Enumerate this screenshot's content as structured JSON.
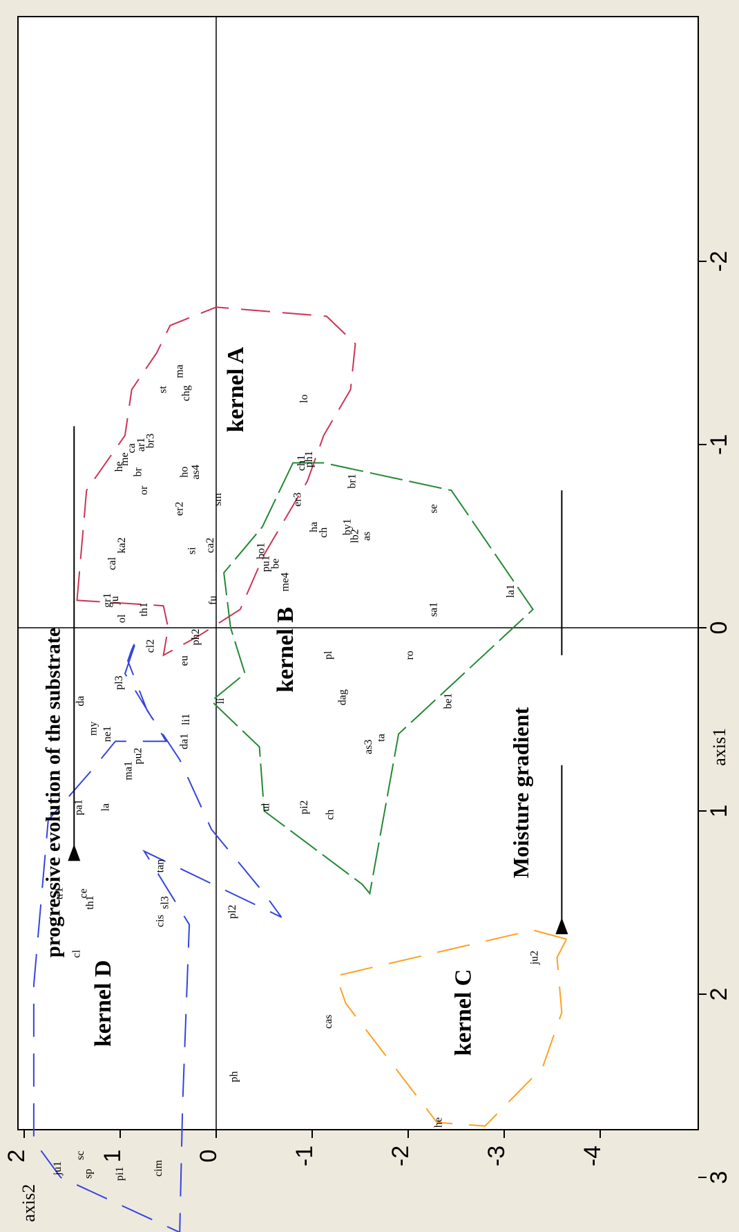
{
  "chart_data": {
    "type": "scatter",
    "title": "",
    "xlabel": "axis1",
    "ylabel": "axis2",
    "xlim": [
      -2.1,
      3.25
    ],
    "ylim": [
      -4.1,
      2.05
    ],
    "x_ticks": [
      -2,
      -1,
      0,
      1,
      2,
      3
    ],
    "x_tick_labels": [
      "-2",
      "-1",
      "0",
      "1",
      "2",
      "3"
    ],
    "y_ticks": [
      2,
      1,
      0,
      -1,
      -2,
      -3,
      -4
    ],
    "y_tick_labels": [
      "2",
      "1",
      "0",
      "-1",
      "-2",
      "-3",
      "-4"
    ],
    "grid": false,
    "orientation": "rotated-90-ccw",
    "annotations": [
      {
        "text": "progressive evolution of the substrate",
        "x": 0.9,
        "y": 1.63
      },
      {
        "text": "Moisture gradient",
        "x": 0.9,
        "y": -3.25
      },
      {
        "text": "kernel A",
        "x": -1.3,
        "y": -0.28
      },
      {
        "text": "kernel B",
        "x": 0.12,
        "y": -0.8
      },
      {
        "text": "kernel C",
        "x": 2.1,
        "y": -2.65
      },
      {
        "text": "kernel D",
        "x": 2.05,
        "y": 1.1
      }
    ],
    "points": [
      {
        "label": "ju1",
        "x": 2.95,
        "y": 1.62
      },
      {
        "label": "sc",
        "x": 2.88,
        "y": 1.38
      },
      {
        "label": "sp",
        "x": 2.98,
        "y": 1.3
      },
      {
        "label": "pi1",
        "x": 2.98,
        "y": 0.97
      },
      {
        "label": "cim",
        "x": 2.95,
        "y": 0.57
      },
      {
        "label": "he",
        "x": 2.7,
        "y": -2.35
      },
      {
        "label": "ph",
        "x": 2.45,
        "y": -0.22
      },
      {
        "label": "cas",
        "x": 2.15,
        "y": -1.2
      },
      {
        "label": "ju2",
        "x": 1.8,
        "y": -3.35
      },
      {
        "label": "cl",
        "x": 1.78,
        "y": 1.42
      },
      {
        "label": "cis",
        "x": 1.6,
        "y": 0.55
      },
      {
        "label": "pl2",
        "x": 1.55,
        "y": -0.2
      },
      {
        "label": "th1",
        "x": 1.5,
        "y": 1.28
      },
      {
        "label": "ce",
        "x": 1.45,
        "y": 1.35
      },
      {
        "label": "sl3",
        "x": 1.5,
        "y": 0.5
      },
      {
        "label": "tr1",
        "x": 1.45,
        "y": 1.6
      },
      {
        "label": "tan",
        "x": 1.3,
        "y": 0.55
      },
      {
        "label": "pa1",
        "x": 0.98,
        "y": 1.4
      },
      {
        "label": "la",
        "x": 0.98,
        "y": 1.12
      },
      {
        "label": "ul",
        "x": 0.98,
        "y": -0.55
      },
      {
        "label": "pi2",
        "x": 0.98,
        "y": -0.95
      },
      {
        "label": "ch",
        "x": 1.02,
        "y": -1.22
      },
      {
        "label": "ma1",
        "x": 0.78,
        "y": 0.88
      },
      {
        "label": "pu2",
        "x": 0.7,
        "y": 0.78
      },
      {
        "label": "da1",
        "x": 0.62,
        "y": 0.3
      },
      {
        "label": "as3",
        "x": 0.65,
        "y": -1.62
      },
      {
        "label": "ta",
        "x": 0.6,
        "y": -1.75
      },
      {
        "label": "ne1",
        "x": 0.58,
        "y": 1.1
      },
      {
        "label": "my",
        "x": 0.55,
        "y": 1.25
      },
      {
        "label": "li1",
        "x": 0.5,
        "y": 0.28
      },
      {
        "label": "da",
        "x": 0.4,
        "y": 1.38
      },
      {
        "label": "li",
        "x": 0.4,
        "y": -0.08
      },
      {
        "label": "dag",
        "x": 0.38,
        "y": -1.35
      },
      {
        "label": "be1",
        "x": 0.4,
        "y": -2.45
      },
      {
        "label": "pl3",
        "x": 0.3,
        "y": 0.98
      },
      {
        "label": "eu",
        "x": 0.18,
        "y": 0.3
      },
      {
        "label": "pl",
        "x": 0.15,
        "y": -1.2
      },
      {
        "label": "ro",
        "x": 0.15,
        "y": -2.05
      },
      {
        "label": "ph2",
        "x": 0.05,
        "y": 0.18
      },
      {
        "label": "cl2",
        "x": 0.1,
        "y": 0.65
      },
      {
        "label": "sa1",
        "x": -0.1,
        "y": -2.3
      },
      {
        "label": "gr1",
        "x": -0.15,
        "y": 1.1
      },
      {
        "label": "th1",
        "x": -0.1,
        "y": 0.72
      },
      {
        "label": "ju",
        "x": -0.15,
        "y": 1.02
      },
      {
        "label": "ol",
        "x": -0.05,
        "y": 0.95
      },
      {
        "label": "fu",
        "x": -0.15,
        "y": 0.0
      },
      {
        "label": "la1",
        "x": -0.2,
        "y": -3.1
      },
      {
        "label": "cal",
        "x": -0.35,
        "y": 1.05
      },
      {
        "label": "si",
        "x": -0.42,
        "y": 0.22
      },
      {
        "label": "ca2",
        "x": -0.45,
        "y": 0.03
      },
      {
        "label": "me4",
        "x": -0.25,
        "y": -0.75
      },
      {
        "label": "pu1",
        "x": -0.35,
        "y": -0.55
      },
      {
        "label": "be",
        "x": -0.35,
        "y": -0.65
      },
      {
        "label": "bo1",
        "x": -0.42,
        "y": -0.5
      },
      {
        "label": "lb2",
        "x": -0.5,
        "y": -1.48
      },
      {
        "label": "by1",
        "x": -0.55,
        "y": -1.4
      },
      {
        "label": "as",
        "x": -0.5,
        "y": -1.6
      },
      {
        "label": "ch",
        "x": -0.52,
        "y": -1.15
      },
      {
        "label": "ha",
        "x": -0.55,
        "y": -1.05
      },
      {
        "label": "ka2",
        "x": -0.45,
        "y": 0.95
      },
      {
        "label": "sm",
        "x": -0.7,
        "y": -0.05
      },
      {
        "label": "er3",
        "x": -0.7,
        "y": -0.88
      },
      {
        "label": "se",
        "x": -0.65,
        "y": -2.3
      },
      {
        "label": "br1",
        "x": -0.8,
        "y": -1.45
      },
      {
        "label": "or",
        "x": -0.75,
        "y": 0.72
      },
      {
        "label": "br",
        "x": -0.85,
        "y": 0.78
      },
      {
        "label": "er2",
        "x": -0.65,
        "y": 0.35
      },
      {
        "label": "ph1",
        "x": -0.92,
        "y": -1.0
      },
      {
        "label": "ch1",
        "x": -0.9,
        "y": -0.92
      },
      {
        "label": "ho",
        "x": -0.85,
        "y": 0.3
      },
      {
        "label": "as4",
        "x": -0.85,
        "y": 0.18
      },
      {
        "label": "he",
        "x": -0.88,
        "y": 0.98
      },
      {
        "label": "me",
        "x": -0.92,
        "y": 0.92
      },
      {
        "label": "ca",
        "x": -0.98,
        "y": 0.85
      },
      {
        "label": "ar1",
        "x": -1.0,
        "y": 0.75
      },
      {
        "label": "br3",
        "x": -1.02,
        "y": 0.65
      },
      {
        "label": "st",
        "x": -1.3,
        "y": 0.52
      },
      {
        "label": "chg",
        "x": -1.28,
        "y": 0.28
      },
      {
        "label": "ma",
        "x": -1.4,
        "y": 0.35
      },
      {
        "label": "lo",
        "x": -1.25,
        "y": -0.95
      }
    ],
    "hulls": [
      {
        "name": "kernel A",
        "color": "#cc3355",
        "dash": "42,18",
        "x": [
          -0.15,
          -0.75,
          -1.05,
          -1.3,
          -1.5,
          -1.65,
          -1.75,
          -1.7,
          -1.55,
          -1.3,
          -1.05,
          -0.8,
          -0.4,
          -0.1,
          0.05,
          0.15,
          0.0,
          -0.12
        ],
        "y": [
          1.45,
          1.35,
          0.95,
          0.88,
          0.62,
          0.48,
          0.0,
          -1.15,
          -1.45,
          -1.4,
          -1.12,
          -0.95,
          -0.5,
          -0.25,
          0.2,
          0.55,
          0.5,
          0.55
        ]
      },
      {
        "name": "kernel B",
        "color": "#228833",
        "dash": "48,10",
        "x": [
          -0.9,
          -0.55,
          -0.3,
          0.0,
          0.25,
          0.4,
          0.65,
          1.0,
          1.4,
          1.45,
          0.58,
          -0.1,
          -0.75,
          -0.9
        ],
        "y": [
          -0.8,
          -0.48,
          -0.08,
          -0.15,
          -0.3,
          0.05,
          -0.45,
          -0.5,
          -1.52,
          -1.6,
          -1.9,
          -3.3,
          -2.45,
          -1.12
        ]
      },
      {
        "name": "kernel C",
        "color": "#ffa020",
        "dash": "48,24",
        "x": [
          1.7,
          1.8,
          2.1,
          2.4,
          2.72,
          2.7,
          2.05,
          1.9,
          1.65
        ],
        "y": [
          -3.65,
          -3.55,
          -3.6,
          -3.4,
          -2.8,
          -2.3,
          -1.35,
          -1.25,
          -3.3
        ]
      },
      {
        "name": "kernel D",
        "color": "#3344dd",
        "dash": "48,24",
        "x": [
          3.0,
          2.8,
          1.95,
          1.05,
          0.78,
          0.62,
          0.62,
          0.25,
          0.05,
          0.12,
          0.18,
          0.45,
          0.72,
          1.1,
          1.45,
          1.58,
          1.22,
          1.62,
          2.6,
          3.3,
          3.0
        ],
        "y": [
          1.62,
          1.9,
          1.9,
          1.75,
          1.3,
          1.05,
          0.52,
          0.95,
          0.82,
          0.88,
          0.92,
          0.72,
          0.38,
          0.05,
          -0.5,
          -0.68,
          0.75,
          0.28,
          0.35,
          0.38,
          1.62
        ]
      }
    ]
  }
}
